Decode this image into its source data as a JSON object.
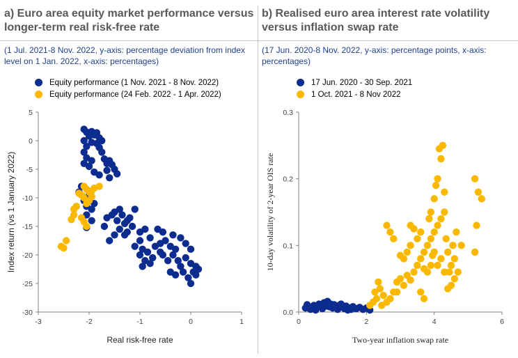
{
  "colors": {
    "navy": "#0c2d8f",
    "yellow": "#fbb800"
  },
  "panel_a": {
    "title": "a) Euro area equity market performance versus longer-term real risk-free rate",
    "subtitle": "(1 Jul. 2021-8 Nov. 2022, y-axis: percentage deviation from index level on 1 Jan. 2022, x-axis: percentages)"
  },
  "panel_b": {
    "title": "b) Realised euro area interest rate volatility versus inflation swap rate",
    "subtitle": "(17 Jun. 2020-8 Nov. 2022, y-axis: percentage points, x-axis: percentages)"
  },
  "chart_data": [
    {
      "type": "scatter",
      "title": "a) Euro area equity market performance versus longer-term real risk-free rate",
      "xlabel": "Real risk-free rate",
      "ylabel": "Index return (vs 1 January 2022)",
      "xlim": [
        -3,
        1
      ],
      "ylim": [
        -30,
        5
      ],
      "xticks": [
        "-3",
        "-2",
        "-1",
        "0",
        "1"
      ],
      "yticks": [
        "5",
        "0",
        "-5",
        "-10",
        "-15",
        "-20",
        "-25",
        "-30"
      ],
      "legend_position": "top-left",
      "series": [
        {
          "name": "Equity performance (1 Nov. 2021 - 8 Nov. 2022)",
          "color": "navy",
          "points": [
            [
              -2.1,
              2.0
            ],
            [
              -2.05,
              1.5
            ],
            [
              -1.95,
              1.6
            ],
            [
              -1.9,
              1.0
            ],
            [
              -2.0,
              0.8
            ],
            [
              -1.85,
              1.4
            ],
            [
              -1.8,
              0.5
            ],
            [
              -1.75,
              0.0
            ],
            [
              -2.1,
              0.0
            ],
            [
              -1.95,
              -0.3
            ],
            [
              -1.85,
              -0.5
            ],
            [
              -2.05,
              -1.0
            ],
            [
              -1.8,
              -1.2
            ],
            [
              -2.1,
              -2.0
            ],
            [
              -1.75,
              -2.0
            ],
            [
              -2.05,
              -3.0
            ],
            [
              -1.95,
              -3.5
            ],
            [
              -1.7,
              -3.2
            ],
            [
              -2.1,
              -4.0
            ],
            [
              -2.0,
              -4.5
            ],
            [
              -1.65,
              -4.0
            ],
            [
              -1.6,
              -3.5
            ],
            [
              -1.55,
              -4.2
            ],
            [
              -1.5,
              -5.0
            ],
            [
              -1.65,
              -5.2
            ],
            [
              -1.9,
              -5.5
            ],
            [
              -1.8,
              -6.0
            ],
            [
              -1.6,
              -6.5
            ],
            [
              -1.45,
              -5.8
            ],
            [
              -2.15,
              -8.0
            ],
            [
              -2.2,
              -9.0
            ],
            [
              -2.0,
              -9.5
            ],
            [
              -2.1,
              -10.5
            ],
            [
              -1.9,
              -11.0
            ],
            [
              -2.05,
              -11.5
            ],
            [
              -1.95,
              -12.0
            ],
            [
              -2.05,
              -13.0
            ],
            [
              -1.95,
              -14.0
            ],
            [
              -2.05,
              -15.2
            ],
            [
              -1.65,
              -13.5
            ],
            [
              -1.5,
              -12.5
            ],
            [
              -1.4,
              -12.0
            ],
            [
              -1.35,
              -13.0
            ],
            [
              -1.45,
              -14.0
            ],
            [
              -1.3,
              -14.5
            ],
            [
              -1.2,
              -13.5
            ],
            [
              -1.1,
              -12.0
            ],
            [
              -1.15,
              -15.0
            ],
            [
              -1.4,
              -15.5
            ],
            [
              -1.5,
              -16.5
            ],
            [
              -1.25,
              -16.0
            ],
            [
              -1.0,
              -16.0
            ],
            [
              -0.9,
              -15.5
            ],
            [
              -0.8,
              -17.0
            ],
            [
              -1.0,
              -17.5
            ],
            [
              -1.1,
              -18.5
            ],
            [
              -0.95,
              -19.0
            ],
            [
              -0.85,
              -19.5
            ],
            [
              -0.7,
              -18.5
            ],
            [
              -0.6,
              -18.0
            ],
            [
              -0.5,
              -17.5
            ],
            [
              -0.4,
              -18.5
            ],
            [
              -0.3,
              -19.0
            ],
            [
              -0.2,
              -17.0
            ],
            [
              -0.1,
              -18.0
            ],
            [
              0.0,
              -19.0
            ],
            [
              -0.55,
              -20.0
            ],
            [
              -0.45,
              -21.0
            ],
            [
              -0.35,
              -20.0
            ],
            [
              -0.6,
              -19.5
            ],
            [
              -0.75,
              -20.5
            ],
            [
              -0.9,
              -21.0
            ],
            [
              -1.0,
              -20.0
            ],
            [
              -0.95,
              -22.0
            ],
            [
              -0.8,
              -21.5
            ],
            [
              -0.1,
              -20.5
            ],
            [
              0.0,
              -21.5
            ],
            [
              0.1,
              -22.0
            ],
            [
              0.05,
              -23.0
            ],
            [
              -0.05,
              -24.0
            ],
            [
              0.1,
              -23.5
            ],
            [
              0.0,
              -25.0
            ],
            [
              -0.15,
              -23.0
            ],
            [
              -0.2,
              -22.0
            ],
            [
              -0.3,
              -23.5
            ],
            [
              -0.4,
              -23.0
            ],
            [
              0.15,
              -22.5
            ],
            [
              -0.25,
              -21.0
            ],
            [
              -0.35,
              -16.5
            ],
            [
              -0.55,
              -16.0
            ],
            [
              -0.65,
              -15.5
            ],
            [
              -1.25,
              -14.0
            ],
            [
              -1.3,
              -16.5
            ],
            [
              -1.55,
              -13.0
            ],
            [
              -1.7,
              -15.0
            ],
            [
              -1.6,
              -17.5
            ]
          ]
        },
        {
          "name": "Equity performance (24 Feb. 2022 - 1 Apr. 2022)",
          "color": "yellow",
          "points": [
            [
              -2.1,
              -8.0
            ],
            [
              -2.05,
              -8.5
            ],
            [
              -2.0,
              -9.0
            ],
            [
              -1.95,
              -8.8
            ],
            [
              -2.15,
              -9.5
            ],
            [
              -2.1,
              -10.0
            ],
            [
              -2.0,
              -10.5
            ],
            [
              -1.95,
              -9.8
            ],
            [
              -2.05,
              -11.0
            ],
            [
              -1.9,
              -8.3
            ],
            [
              -2.2,
              -9.2
            ],
            [
              -1.8,
              -8.0
            ],
            [
              -2.3,
              -12.0
            ],
            [
              -2.25,
              -11.5
            ],
            [
              -2.3,
              -13.0
            ],
            [
              -2.35,
              -13.8
            ],
            [
              -2.15,
              -13.5
            ],
            [
              -2.1,
              -14.2
            ],
            [
              -2.05,
              -15.0
            ],
            [
              -2.55,
              -18.5
            ],
            [
              -2.5,
              -18.8
            ],
            [
              -2.45,
              -17.5
            ]
          ]
        }
      ]
    },
    {
      "type": "scatter",
      "title": "b) Realised euro area interest rate volatility versus inflation swap rate",
      "xlabel": "Two-year inflation swap rate",
      "ylabel": "10-day volatility of 2-year OIS rate",
      "xlim": [
        0,
        6
      ],
      "ylim": [
        0,
        0.3
      ],
      "xticks": [
        "0",
        "2",
        "4",
        "6"
      ],
      "yticks": [
        "0.3",
        "0.2",
        "0.1",
        "0.0"
      ],
      "legend_position": "top-left",
      "series": [
        {
          "name": "17 Jun. 2020 - 30 Sep. 2021",
          "color": "navy",
          "points": [
            [
              0.2,
              0.006
            ],
            [
              0.3,
              0.008
            ],
            [
              0.35,
              0.004
            ],
            [
              0.45,
              0.01
            ],
            [
              0.55,
              0.007
            ],
            [
              0.6,
              0.012
            ],
            [
              0.7,
              0.005
            ],
            [
              0.75,
              0.014
            ],
            [
              0.8,
              0.009
            ],
            [
              0.85,
              0.016
            ],
            [
              0.9,
              0.008
            ],
            [
              0.95,
              0.012
            ],
            [
              1.0,
              0.006
            ],
            [
              1.05,
              0.011
            ],
            [
              1.1,
              0.008
            ],
            [
              1.15,
              0.004
            ],
            [
              1.2,
              0.01
            ],
            [
              1.3,
              0.007
            ],
            [
              1.35,
              0.005
            ],
            [
              1.4,
              0.009
            ],
            [
              1.5,
              0.006
            ],
            [
              1.55,
              0.004
            ],
            [
              1.6,
              0.008
            ],
            [
              1.7,
              0.005
            ],
            [
              1.8,
              0.007
            ],
            [
              1.9,
              0.004
            ],
            [
              2.0,
              0.006
            ],
            [
              2.1,
              0.003
            ],
            [
              0.5,
              0.003
            ],
            [
              0.65,
              0.009
            ],
            [
              1.25,
              0.012
            ],
            [
              1.45,
              0.003
            ],
            [
              0.4,
              0.007
            ],
            [
              0.25,
              0.011
            ]
          ]
        },
        {
          "name": "1 Oct. 2021 - 8 Nov 2022",
          "color": "yellow",
          "points": [
            [
              2.1,
              0.01
            ],
            [
              2.2,
              0.015
            ],
            [
              2.3,
              0.02
            ],
            [
              2.25,
              0.03
            ],
            [
              2.4,
              0.035
            ],
            [
              2.35,
              0.045
            ],
            [
              2.5,
              0.025
            ],
            [
              2.6,
              0.015
            ],
            [
              2.7,
              0.02
            ],
            [
              2.8,
              0.03
            ],
            [
              2.9,
              0.045
            ],
            [
              3.0,
              0.05
            ],
            [
              3.1,
              0.04
            ],
            [
              3.2,
              0.055
            ],
            [
              3.3,
              0.048
            ],
            [
              3.4,
              0.06
            ],
            [
              3.5,
              0.07
            ],
            [
              3.6,
              0.08
            ],
            [
              3.7,
              0.09
            ],
            [
              3.8,
              0.1
            ],
            [
              3.9,
              0.11
            ],
            [
              4.0,
              0.12
            ],
            [
              4.1,
              0.13
            ],
            [
              4.2,
              0.14
            ],
            [
              4.3,
              0.15
            ],
            [
              4.0,
              0.17
            ],
            [
              4.1,
              0.2
            ],
            [
              4.2,
              0.23
            ],
            [
              4.25,
              0.25
            ],
            [
              4.15,
              0.245
            ],
            [
              4.3,
              0.18
            ],
            [
              4.4,
              0.09
            ],
            [
              4.5,
              0.07
            ],
            [
              4.6,
              0.08
            ],
            [
              4.7,
              0.06
            ],
            [
              4.8,
              0.1
            ],
            [
              4.5,
              0.04
            ],
            [
              4.4,
              0.035
            ],
            [
              4.6,
              0.05
            ],
            [
              4.3,
              0.06
            ],
            [
              4.2,
              0.08
            ],
            [
              4.0,
              0.09
            ],
            [
              3.9,
              0.07
            ],
            [
              3.8,
              0.06
            ],
            [
              3.7,
              0.065
            ],
            [
              3.6,
              0.12
            ],
            [
              3.5,
              0.11
            ],
            [
              3.4,
              0.125
            ],
            [
              3.3,
              0.13
            ],
            [
              3.2,
              0.09
            ],
            [
              3.1,
              0.08
            ],
            [
              3.0,
              0.085
            ],
            [
              2.6,
              0.13
            ],
            [
              2.7,
              0.12
            ],
            [
              2.8,
              0.11
            ],
            [
              5.2,
              0.2
            ],
            [
              5.3,
              0.18
            ],
            [
              5.4,
              0.17
            ],
            [
              5.25,
              0.13
            ],
            [
              5.2,
              0.09
            ],
            [
              3.6,
              0.03
            ],
            [
              3.7,
              0.02
            ],
            [
              3.9,
              0.15
            ],
            [
              4.05,
              0.19
            ],
            [
              4.35,
              0.11
            ],
            [
              4.55,
              0.1
            ],
            [
              4.65,
              0.12
            ],
            [
              4.45,
              0.06
            ],
            [
              3.85,
              0.14
            ],
            [
              3.95,
              0.085
            ],
            [
              4.1,
              0.07
            ],
            [
              3.3,
              0.1
            ],
            [
              2.9,
              0.03
            ],
            [
              2.45,
              0.01
            ]
          ]
        }
      ]
    }
  ]
}
